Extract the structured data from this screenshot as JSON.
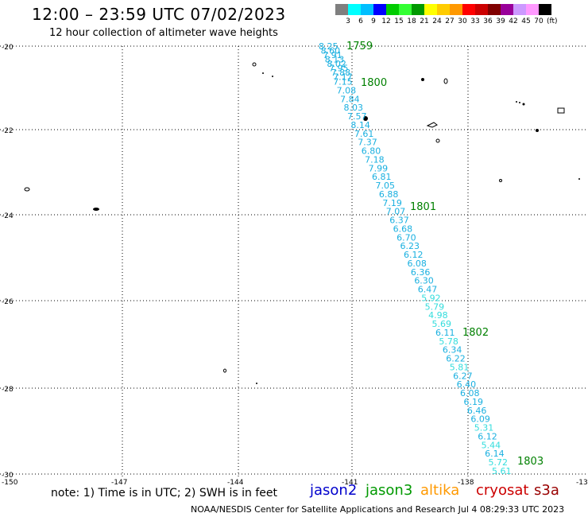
{
  "title": "12:00 – 23:59 UTC 07/02/2023",
  "subtitle": "12 hour collection of altimeter wave heights",
  "colorbar": {
    "labels": [
      "3",
      "6",
      "9",
      "12",
      "15",
      "18",
      "21",
      "24",
      "27",
      "30",
      "33",
      "36",
      "39",
      "42",
      "45",
      "70"
    ],
    "unit": "(ft)",
    "colors": [
      "#7f7f7f",
      "#00ffff",
      "#00bfff",
      "#0000ff",
      "#00cc00",
      "#33ff33",
      "#009900",
      "#ffff00",
      "#ffcc00",
      "#ff9900",
      "#ff0000",
      "#cc0000",
      "#800000",
      "#990099",
      "#cc99ff",
      "#ff99ff",
      "#000000"
    ]
  },
  "axes": {
    "lat_labels": [
      "-20",
      "-22",
      "-24",
      "-26",
      "-28",
      "-30"
    ],
    "lon_labels": [
      "-150",
      "-147",
      "-144",
      "-141",
      "-138",
      "-13"
    ]
  },
  "track_times": [
    "1759",
    "1800",
    "1801",
    "1802",
    "1803"
  ],
  "track_values": [
    "8.25",
    "8.60",
    "7.91",
    "8.13",
    "8.02",
    "7.95",
    "7.88",
    "7.17",
    "7.15",
    "7.08",
    "7.84",
    "8.03",
    "7.57",
    "8.14",
    "7.61",
    "7.37",
    "6.80",
    "7.18",
    "7.99",
    "6.81",
    "7.05",
    "6.88",
    "7.19",
    "7.07",
    "6.37",
    "6.68",
    "6.70",
    "6.23",
    "6.12",
    "6.08",
    "6.36",
    "6.30",
    "6.47",
    "5.92",
    "5.79",
    "4.98",
    "5.69",
    "6.11",
    "5.78",
    "6.34",
    "6.22",
    "5.81",
    "6.27",
    "6.40",
    "6.08",
    "6.19",
    "6.46",
    "6.09",
    "5.31",
    "6.12",
    "5.44",
    "6.14",
    "5.72",
    "5.61"
  ],
  "note": "note: 1) Time is in UTC; 2) SWH is in feet",
  "satellites": [
    {
      "name": "jason2",
      "color": "#0000cc"
    },
    {
      "name": "jason3",
      "color": "#009900"
    },
    {
      "name": "altika",
      "color": "#ff9900"
    },
    {
      "name": "cryosat",
      "color": "#cc0000"
    },
    {
      "name": "s3a",
      "color": "#990000"
    }
  ],
  "footer": "NOAA/NESDIS Center for Satellite Applications and Research   Jul  4 08:29:33 UTC 2023"
}
